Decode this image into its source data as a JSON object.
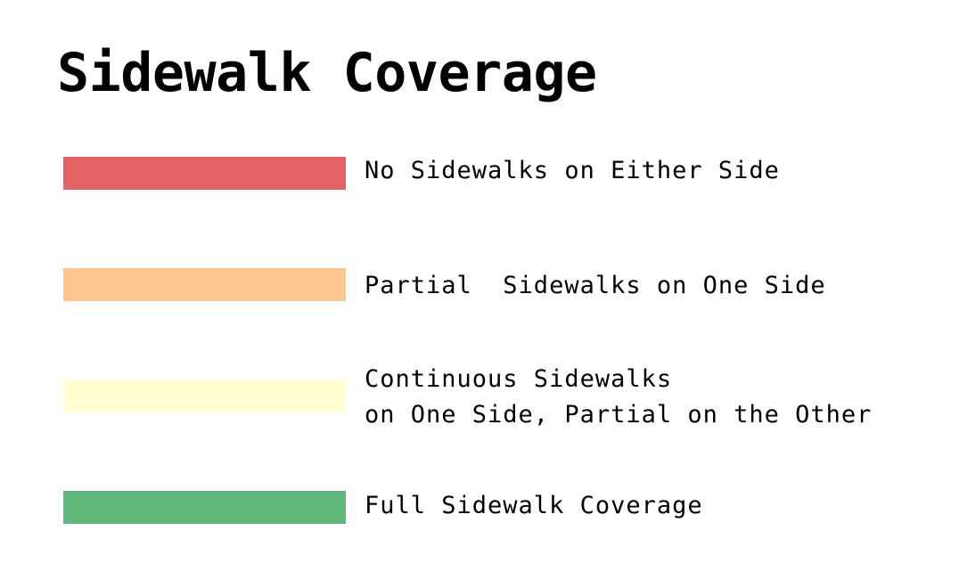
{
  "legend": {
    "title": "Sidewalk Coverage",
    "items": [
      {
        "color": "#e46264",
        "label": "No Sidewalks on Either Side"
      },
      {
        "color": "#fec690",
        "label": "Partial  Sidewalks on One Side"
      },
      {
        "color": "#ffffd2",
        "label": "Continuous Sidewalks",
        "label_line2": "on One Side, Partial on the Other"
      },
      {
        "color": "#60b77a",
        "label": "Full Sidewalk Coverage"
      }
    ]
  }
}
